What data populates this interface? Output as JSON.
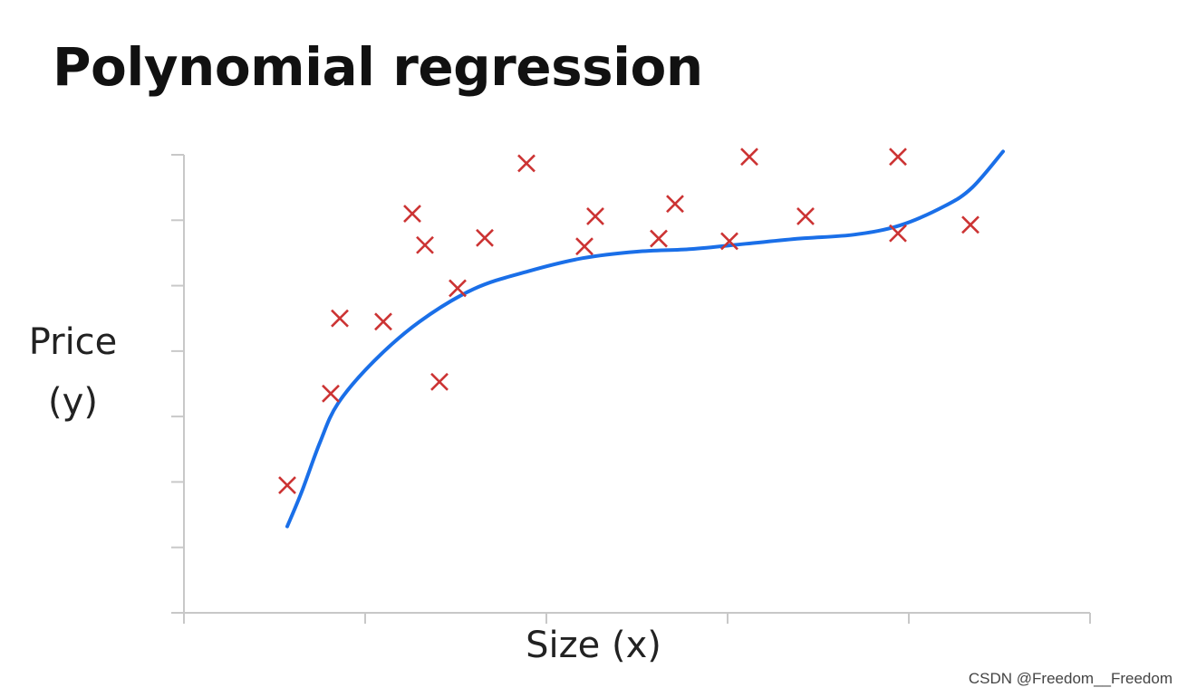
{
  "title": "Polynomial regression",
  "watermark": "CSDN @Freedom__Freedom",
  "chart_data": {
    "type": "scatter",
    "xlabel": "Size (x)",
    "ylabel_line1": "Price",
    "ylabel_line2": "(y)",
    "xlim": [
      0,
      5
    ],
    "ylim": [
      0,
      7
    ],
    "x_ticks": [
      0,
      1,
      2,
      3,
      4,
      5
    ],
    "y_ticks": [
      0,
      1,
      2,
      3,
      4,
      5,
      6,
      7
    ],
    "tick_labels_shown": false,
    "grid": false,
    "marker_color": "#cc3333",
    "curve_color": "#1a6fe8",
    "points": [
      {
        "x": 0.57,
        "y": 1.95
      },
      {
        "x": 0.81,
        "y": 3.35
      },
      {
        "x": 0.86,
        "y": 4.5
      },
      {
        "x": 1.1,
        "y": 4.45
      },
      {
        "x": 1.26,
        "y": 6.1
      },
      {
        "x": 1.33,
        "y": 5.62
      },
      {
        "x": 1.41,
        "y": 3.53
      },
      {
        "x": 1.51,
        "y": 4.96
      },
      {
        "x": 1.66,
        "y": 5.73
      },
      {
        "x": 1.89,
        "y": 6.87
      },
      {
        "x": 2.21,
        "y": 5.6
      },
      {
        "x": 2.27,
        "y": 6.06
      },
      {
        "x": 2.62,
        "y": 5.72
      },
      {
        "x": 2.71,
        "y": 6.25
      },
      {
        "x": 3.01,
        "y": 5.68
      },
      {
        "x": 3.12,
        "y": 6.97
      },
      {
        "x": 3.43,
        "y": 6.06
      },
      {
        "x": 3.94,
        "y": 6.97
      },
      {
        "x": 3.94,
        "y": 5.8
      },
      {
        "x": 4.34,
        "y": 5.93
      }
    ],
    "curve": {
      "label": "",
      "points": [
        [
          0.57,
          1.32
        ],
        [
          0.65,
          1.85
        ],
        [
          0.75,
          2.6
        ],
        [
          0.85,
          3.2
        ],
        [
          1.05,
          3.85
        ],
        [
          1.3,
          4.45
        ],
        [
          1.6,
          4.95
        ],
        [
          1.9,
          5.22
        ],
        [
          2.2,
          5.42
        ],
        [
          2.5,
          5.52
        ],
        [
          2.8,
          5.56
        ],
        [
          3.1,
          5.64
        ],
        [
          3.4,
          5.72
        ],
        [
          3.7,
          5.78
        ],
        [
          3.95,
          5.92
        ],
        [
          4.2,
          6.22
        ],
        [
          4.35,
          6.5
        ],
        [
          4.52,
          7.05
        ]
      ]
    }
  }
}
